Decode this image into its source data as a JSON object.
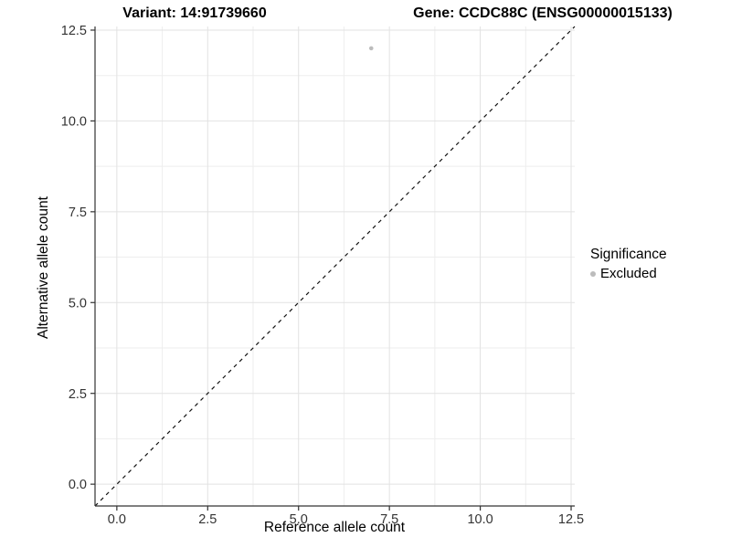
{
  "chart_data": {
    "type": "scatter",
    "titles": {
      "variant": "Variant: 14:91739660",
      "gene": "Gene: CCDC88C (ENSG00000015133)"
    },
    "xlabel": "Reference allele count",
    "ylabel": "Alternative allele count",
    "xlim": [
      -0.6,
      12.6
    ],
    "ylim": [
      -0.6,
      12.6
    ],
    "x_ticks": [
      {
        "value": 0,
        "label": "0.0"
      },
      {
        "value": 2.5,
        "label": "2.5"
      },
      {
        "value": 5,
        "label": "5.0"
      },
      {
        "value": 7.5,
        "label": "7.5"
      },
      {
        "value": 10,
        "label": "10.0"
      },
      {
        "value": 12.5,
        "label": "12.5"
      }
    ],
    "y_ticks": [
      {
        "value": 0,
        "label": "0.0"
      },
      {
        "value": 2.5,
        "label": "2.5"
      },
      {
        "value": 5,
        "label": "5.0"
      },
      {
        "value": 7.5,
        "label": "7.5"
      },
      {
        "value": 10,
        "label": "10.0"
      },
      {
        "value": 12.5,
        "label": "12.5"
      }
    ],
    "minor_ticks": [
      1.25,
      3.75,
      6.25,
      8.75,
      11.25
    ],
    "grid": "major and minor gridlines, white panel background",
    "points": [
      {
        "x": 7,
        "y": 12,
        "significance": "Excluded"
      }
    ],
    "reference_line": {
      "type": "identity",
      "slope": 1,
      "intercept": 0,
      "linetype": "dashed"
    },
    "legend": {
      "title": "Significance",
      "position": "right",
      "items": [
        {
          "label": "Excluded",
          "color": "#bcbcbc",
          "marker": "circle"
        }
      ]
    },
    "colors": {
      "point": "#bcbcbc",
      "axis_line": "#333333",
      "tick_text": "#333333",
      "grid_major": "#e2e2e2",
      "grid_minor": "#eeeeee",
      "reference_line": "#111111",
      "background": "#ffffff"
    }
  }
}
